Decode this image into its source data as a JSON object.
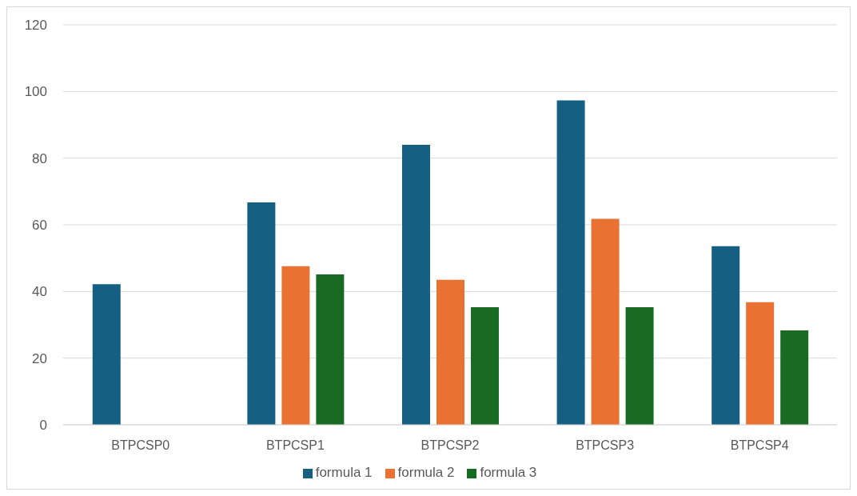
{
  "chart_data": {
    "type": "bar",
    "categories": [
      "BTPCSP0",
      "BTPCSP1",
      "BTPCSP2",
      "BTPCSP3",
      "BTPCSP4"
    ],
    "series": [
      {
        "name": "formula 1",
        "color": "#156082",
        "values": [
          42.2,
          66.7,
          84.0,
          97.3,
          53.6
        ]
      },
      {
        "name": "formula 2",
        "color": "#e97132",
        "values": [
          null,
          47.6,
          43.5,
          61.8,
          36.8
        ]
      },
      {
        "name": "formula 3",
        "color": "#196b24",
        "values": [
          null,
          45.1,
          35.3,
          35.3,
          28.3
        ]
      }
    ],
    "ylim": [
      0,
      120
    ],
    "yticks": [
      0,
      20,
      40,
      60,
      80,
      100,
      120
    ],
    "grid": "y",
    "legend": "bottom"
  }
}
